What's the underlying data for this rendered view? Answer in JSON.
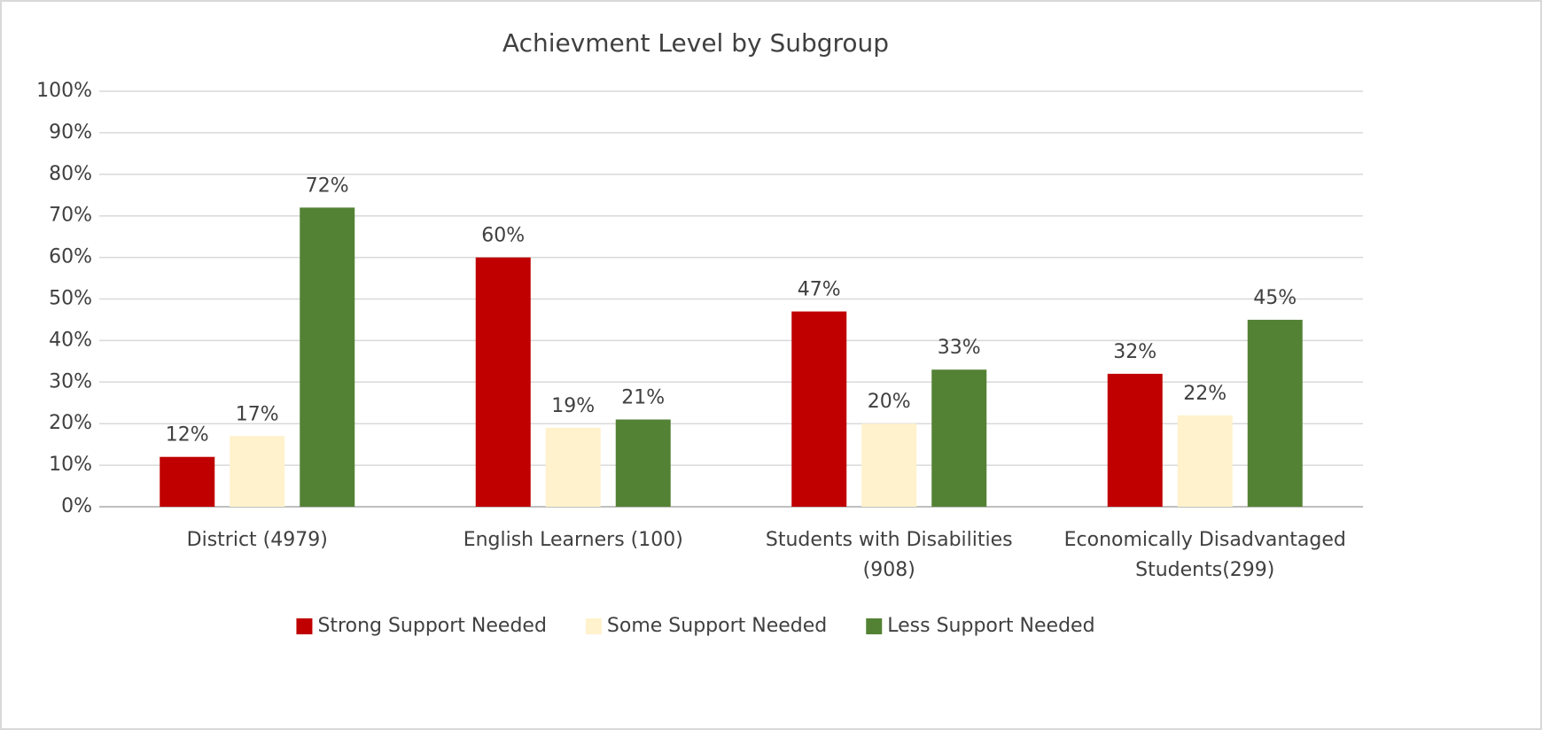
{
  "chart_data": {
    "type": "bar",
    "title": "Achievment Level by Subgroup",
    "categories": [
      "District (4979)",
      "English Learners (100)",
      "Students with Disabilities (908)",
      "Economically Disadvantaged Students(299)"
    ],
    "series": [
      {
        "name": "Strong Support Needed",
        "color": "#c00000",
        "values": [
          12,
          60,
          47,
          32
        ],
        "value_labels": [
          "12%",
          "60%",
          "47%",
          "32%"
        ]
      },
      {
        "name": "Some Support Needed",
        "color": "#fff2cc",
        "values": [
          17,
          19,
          20,
          22
        ],
        "value_labels": [
          "17%",
          "19%",
          "20%",
          "22%"
        ]
      },
      {
        "name": "Less Support Needed",
        "color": "#548235",
        "values": [
          72,
          21,
          33,
          45
        ],
        "value_labels": [
          "72%",
          "21%",
          "33%",
          "45%"
        ]
      }
    ],
    "ylim": [
      0,
      100
    ],
    "yticks": [
      {
        "value": 0,
        "label": "0%"
      },
      {
        "value": 10,
        "label": "10%"
      },
      {
        "value": 20,
        "label": "20%"
      },
      {
        "value": 30,
        "label": "30%"
      },
      {
        "value": 40,
        "label": "40%"
      },
      {
        "value": 50,
        "label": "50%"
      },
      {
        "value": 60,
        "label": "60%"
      },
      {
        "value": 70,
        "label": "70%"
      },
      {
        "value": 80,
        "label": "80%"
      },
      {
        "value": 90,
        "label": "90%"
      },
      {
        "value": 100,
        "label": "100%"
      }
    ],
    "grid": true,
    "legend": "bottom"
  }
}
